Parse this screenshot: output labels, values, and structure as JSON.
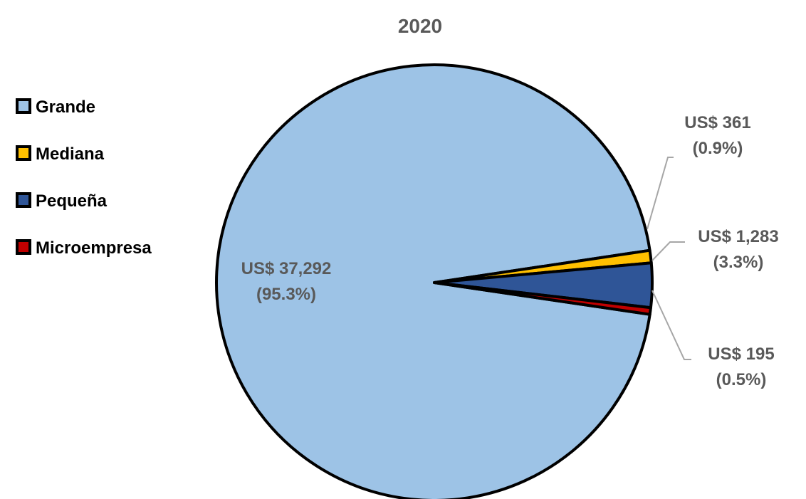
{
  "chart_data": {
    "type": "pie",
    "title": "2020",
    "legend_position": "left",
    "slices": [
      {
        "name": "Grande",
        "value": 37292,
        "percent": 95.3,
        "color": "#9DC3E6",
        "label_value": "US$  37,292",
        "label_percent": "(95.3%)"
      },
      {
        "name": "Mediana",
        "value": 361,
        "percent": 0.9,
        "color": "#FFC000",
        "label_value": "US$  361",
        "label_percent": "(0.9%)"
      },
      {
        "name": "Pequeña",
        "value": 1283,
        "percent": 3.3,
        "color": "#2F5597",
        "label_value": "US$ 1,283",
        "label_percent": "(3.3%)"
      },
      {
        "name": "Microempresa",
        "value": 195,
        "percent": 0.5,
        "color": "#C00000",
        "label_value": "US$ 195",
        "label_percent": "(0.5%)"
      }
    ]
  }
}
